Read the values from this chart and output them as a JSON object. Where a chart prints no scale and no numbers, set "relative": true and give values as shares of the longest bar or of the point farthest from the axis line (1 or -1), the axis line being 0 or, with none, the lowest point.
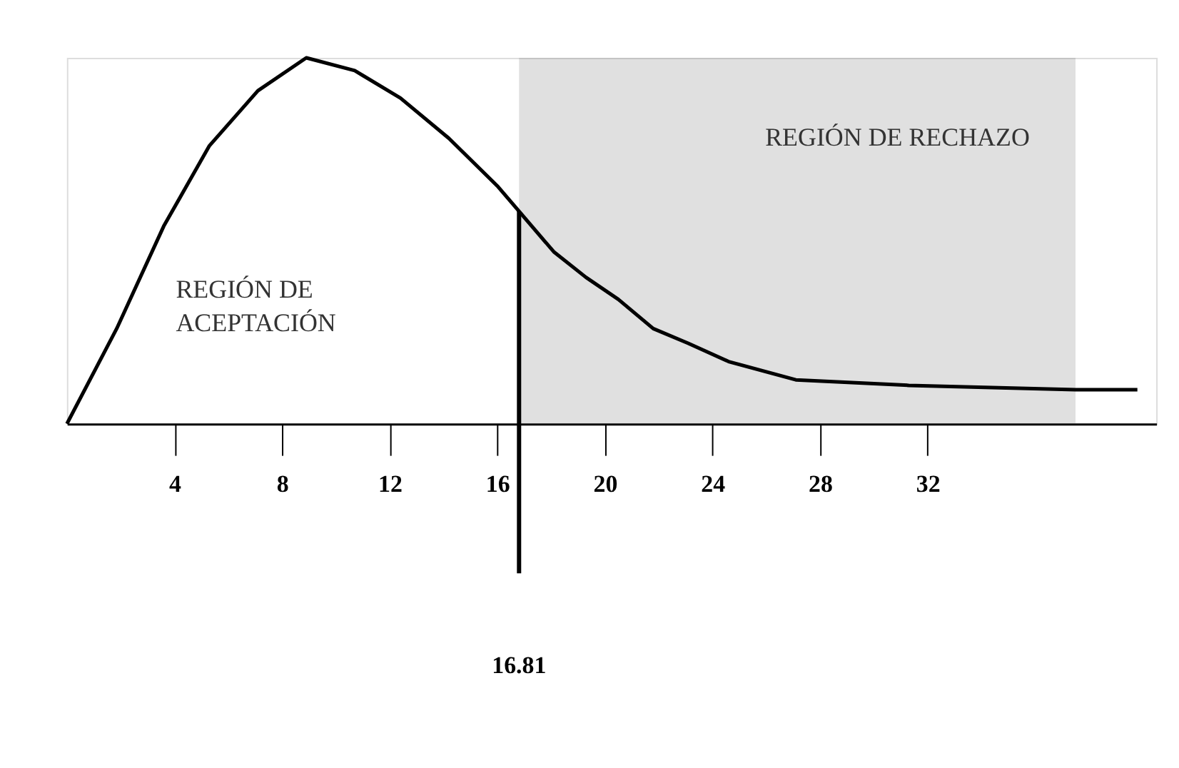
{
  "chart_data": {
    "type": "line",
    "relative": true,
    "x": [
      0,
      1.85,
      3.6,
      5.3,
      7.1,
      8.9,
      10.7,
      12.4,
      14.2,
      16.0,
      18.1,
      19.3,
      20.5,
      21.8,
      23.1,
      24.6,
      27.1,
      31.3,
      37.5,
      39.8
    ],
    "series": [
      {
        "color": "#000000",
        "values": [
          0,
          0.26,
          0.54,
          0.76,
          0.91,
          1.0,
          0.965,
          0.89,
          0.78,
          0.65,
          0.47,
          0.4,
          0.34,
          0.26,
          0.22,
          0.17,
          0.12,
          0.105,
          0.093,
          0.093
        ]
      }
    ],
    "xlim": [
      0,
      40.5
    ],
    "xticks": [
      4,
      8,
      12,
      16,
      20,
      24,
      28,
      32
    ],
    "tick_labels": "x",
    "grid": false,
    "marker": "none",
    "line_style": "solid",
    "ref_lines": [
      {
        "axis": "x",
        "value": 16.81,
        "label": "16.81",
        "color": "#000000"
      }
    ],
    "bands": [
      {
        "axis": "x",
        "from": 16.81,
        "to": 37.5,
        "label": "REGIÓN DE RECHAZO",
        "color": "#555555"
      }
    ],
    "annotations": [
      "REGIÓN DE ACEPTACIÓN"
    ]
  }
}
